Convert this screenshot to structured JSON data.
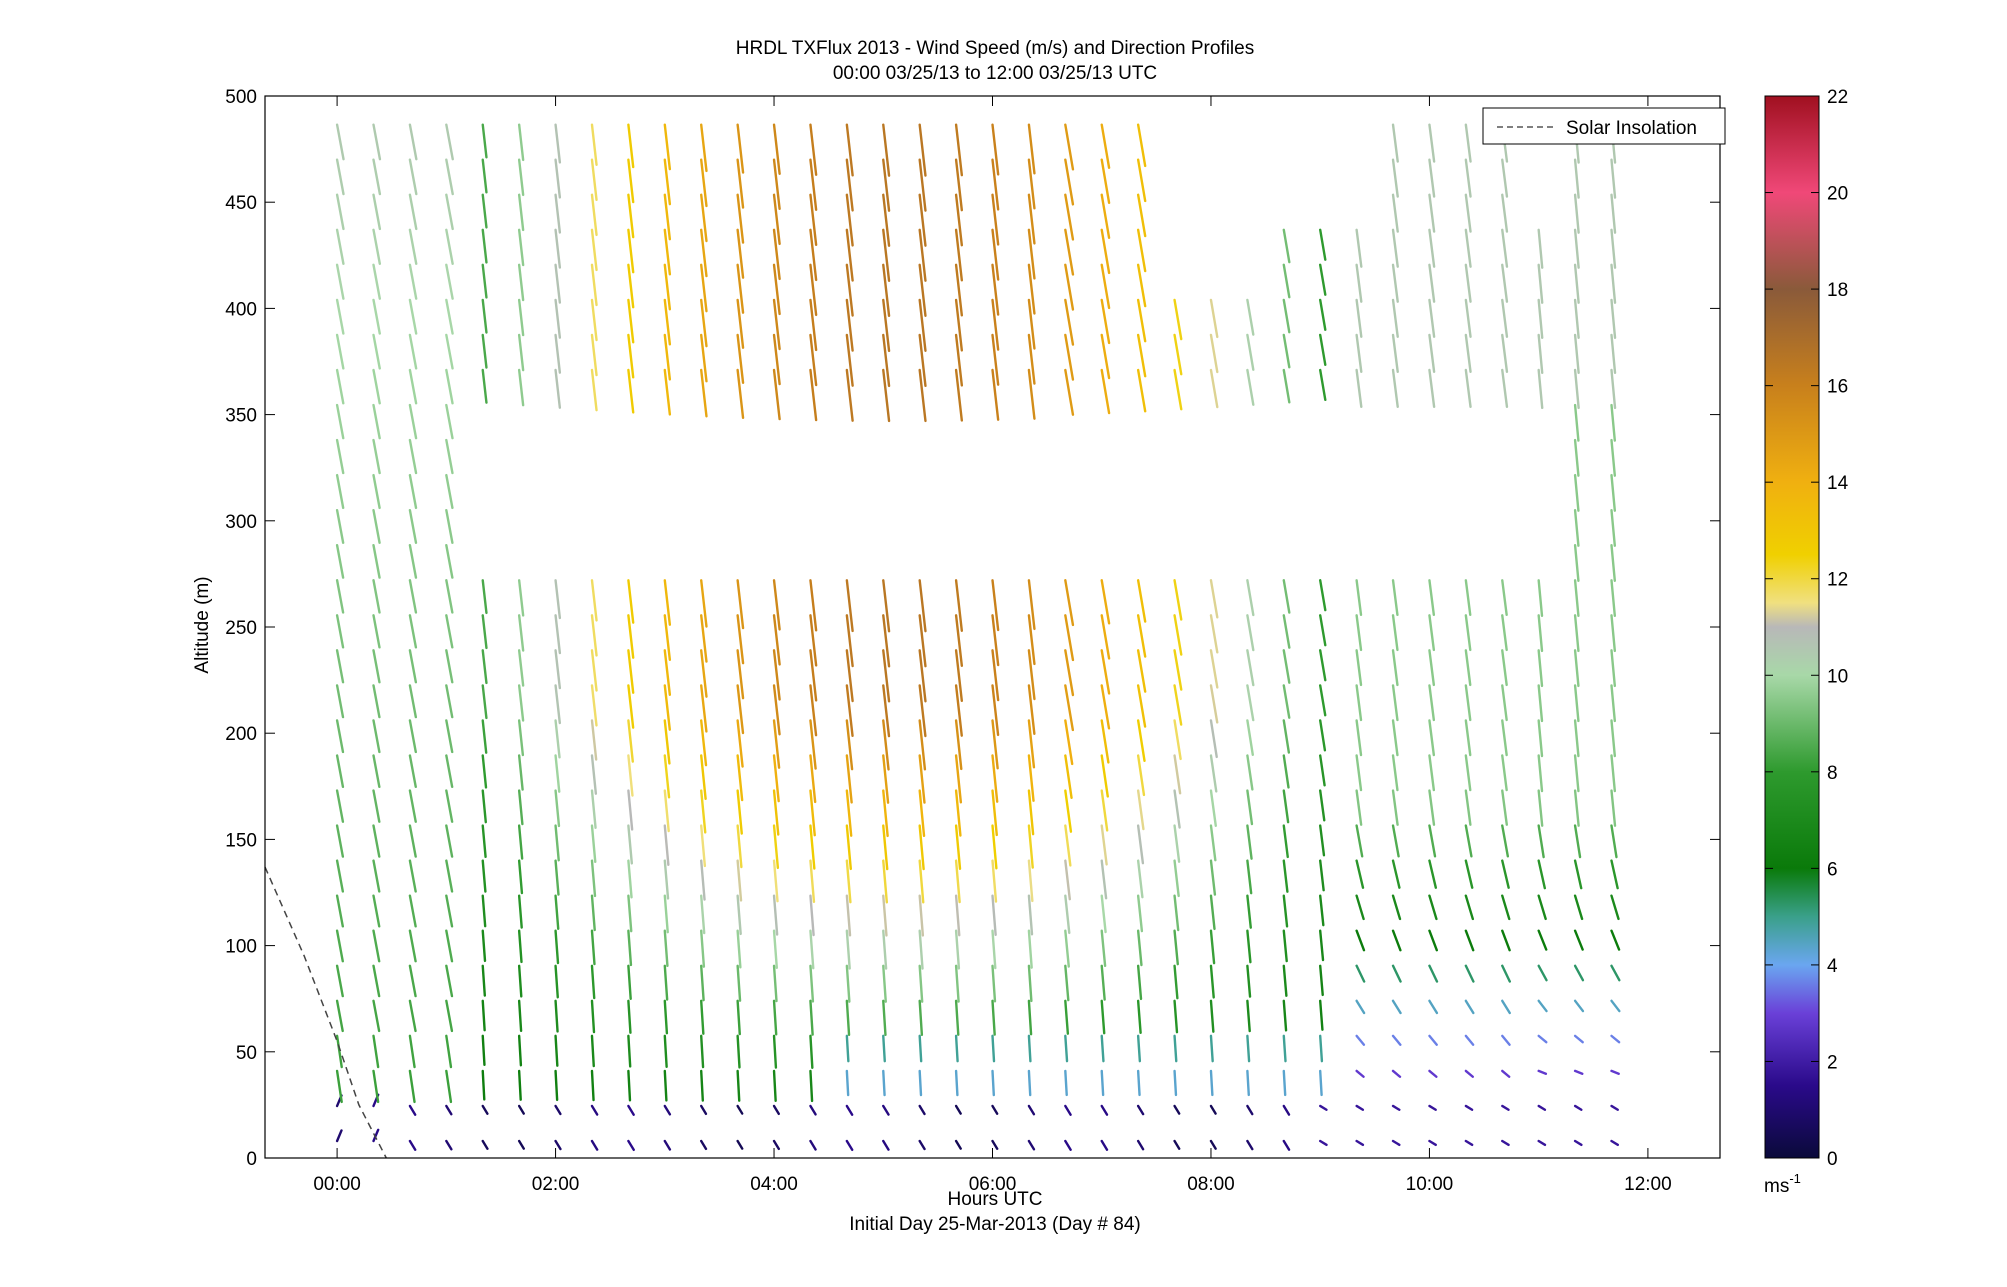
{
  "chart_data": {
    "type": "quiver",
    "title_line1": "HRDL TXFlux 2013 - Wind Speed (m/s) and Direction Profiles",
    "title_line2": "00:00 03/25/13 to 12:00 03/25/13  UTC",
    "xlabel": "Hours UTC",
    "xlabel_sub": "Initial Day 25-Mar-2013 (Day # 84)",
    "ylabel": "Altitude (m)",
    "xlim_hours": [
      -0.66,
      12.66
    ],
    "ylim": [
      0,
      500
    ],
    "x_ticks": [
      {
        "hour": 0,
        "label": "00:00"
      },
      {
        "hour": 2,
        "label": "02:00"
      },
      {
        "hour": 4,
        "label": "04:00"
      },
      {
        "hour": 6,
        "label": "06:00"
      },
      {
        "hour": 8,
        "label": "08:00"
      },
      {
        "hour": 10,
        "label": "10:00"
      },
      {
        "hour": 12,
        "label": "12:00"
      }
    ],
    "y_ticks": [
      0,
      50,
      100,
      150,
      200,
      250,
      300,
      350,
      400,
      450,
      500
    ],
    "legend": {
      "label": "Solar Insolation",
      "position": "top-right",
      "line_color": "#555555",
      "line_style": "dashed"
    },
    "solar_insolation": {
      "hours": [
        -0.66,
        -0.3,
        0.0,
        0.2,
        0.45
      ],
      "altitude": [
        137,
        95,
        55,
        25,
        0
      ]
    },
    "colorbar": {
      "ticks": [
        0,
        2,
        4,
        6,
        8,
        10,
        12,
        14,
        16,
        18,
        20,
        22
      ],
      "unit_label": "ms",
      "unit_exponent": "-1",
      "range": [
        0,
        22
      ],
      "color_stops": [
        {
          "v": 0,
          "c": "#0a0a3a"
        },
        {
          "v": 1.5,
          "c": "#2a0a8a"
        },
        {
          "v": 3,
          "c": "#6a40d8"
        },
        {
          "v": 4,
          "c": "#6aa6f0"
        },
        {
          "v": 5,
          "c": "#3aa08a"
        },
        {
          "v": 6,
          "c": "#0a7a0a"
        },
        {
          "v": 8,
          "c": "#2e9a2e"
        },
        {
          "v": 10,
          "c": "#a8d8a8"
        },
        {
          "v": 11,
          "c": "#b8b8b8"
        },
        {
          "v": 11.5,
          "c": "#f0e080"
        },
        {
          "v": 12.5,
          "c": "#f0d000"
        },
        {
          "v": 14,
          "c": "#f0b010"
        },
        {
          "v": 16,
          "c": "#c8801c"
        },
        {
          "v": 18,
          "c": "#8a5a3a"
        },
        {
          "v": 20,
          "c": "#f04878"
        },
        {
          "v": 22,
          "c": "#a01020"
        }
      ]
    },
    "grid": false,
    "arrow_time_step_min": 20,
    "arrow_altitude_step_m": 16.5,
    "data_gaps": [
      {
        "hours": [
          1.25,
          11.1
        ],
        "altitude": [
          280,
          355
        ]
      },
      {
        "hours": [
          7.4,
          8.7
        ],
        "altitude": [
          440,
          500
        ]
      },
      {
        "hours": [
          7.4,
          8.5
        ],
        "altitude": [
          420,
          440
        ]
      },
      {
        "hours": [
          8.9,
          9.4
        ],
        "altitude": [
          440,
          500
        ]
      },
      {
        "hours": [
          10.75,
          11.0
        ],
        "altitude": [
          450,
          500
        ]
      },
      {
        "hours": [
          10.0,
          10.5
        ],
        "altitude": [
          280,
          310
        ]
      },
      {
        "hours": [
          10.75,
          11.1
        ],
        "altitude": [
          280,
          300
        ]
      }
    ]
  }
}
